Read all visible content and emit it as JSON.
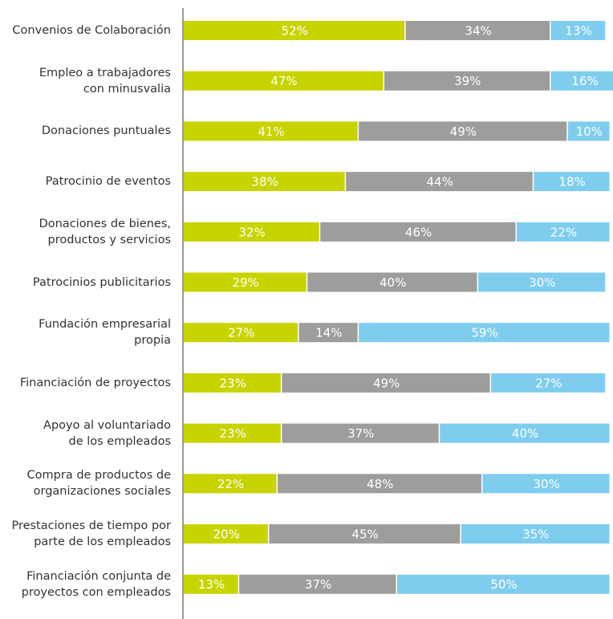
{
  "chart_data": {
    "type": "stacked-bar-horizontal",
    "categories": [
      "Convenios de Colaboración",
      "Empleo a trabajadores\ncon minusvalia",
      "Donaciones puntuales",
      "Patrocinio de eventos",
      "Donaciones de bienes,\nproductos y servicios",
      "Patrocinios publicitarios",
      "Fundación empresarial\npropia",
      "Financiación de proyectos",
      "Apoyo al voluntariado\nde los empleados",
      "Compra de productos de\norganizaciones sociales",
      "Prestaciones de tiempo por\nparte de los empleados",
      "Financiación conjunta de\nproyectos con empleados"
    ],
    "series": [
      {
        "color": "#c8d400",
        "values": [
          52,
          47,
          41,
          38,
          32,
          29,
          27,
          23,
          23,
          22,
          20,
          13
        ],
        "value_labels": [
          "52%",
          "47%",
          "41%",
          "38%",
          "32%",
          "29%",
          "27%",
          "23%",
          "23%",
          "22%",
          "20%",
          "13%"
        ]
      },
      {
        "color": "#9d9d9c",
        "values": [
          34,
          39,
          49,
          44,
          46,
          40,
          14,
          49,
          37,
          48,
          45,
          37
        ],
        "value_labels": [
          "34%",
          "39%",
          "49%",
          "44%",
          "46%",
          "40%",
          "14%",
          "49%",
          "37%",
          "48%",
          "45%",
          "37%"
        ]
      },
      {
        "color": "#7fcdee",
        "values": [
          13,
          16,
          10,
          18,
          22,
          30,
          59,
          27,
          40,
          30,
          35,
          50
        ],
        "value_labels": [
          "13%",
          "16%",
          "10%",
          "18%",
          "22%",
          "30%",
          "59%",
          "27%",
          "40%",
          "30%",
          "35%",
          "50%"
        ]
      }
    ],
    "xlim": [
      0,
      100
    ]
  }
}
